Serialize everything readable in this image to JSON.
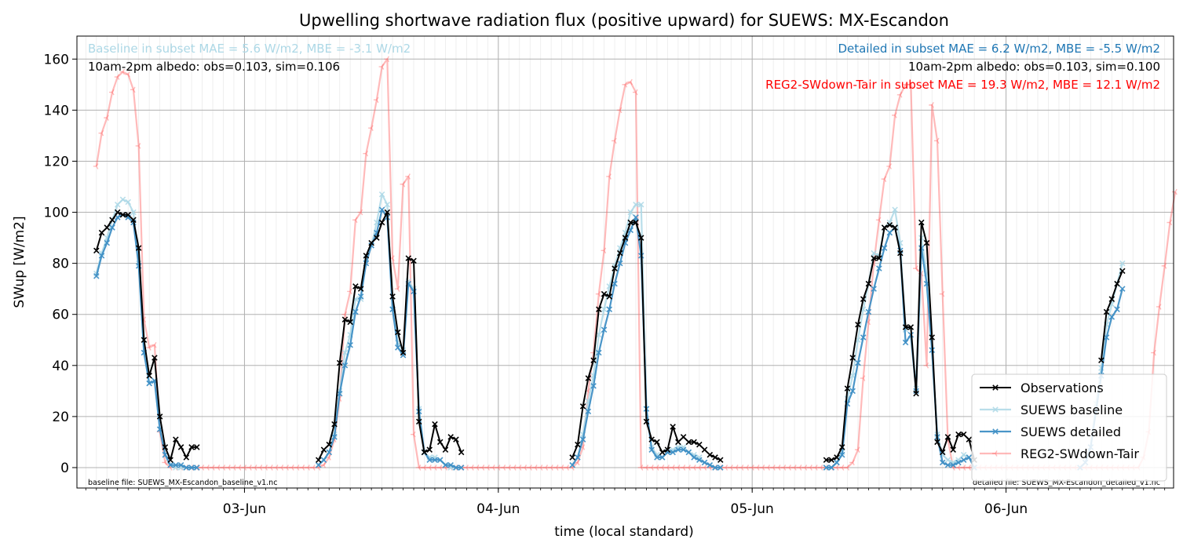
{
  "chart_data": {
    "type": "line",
    "title": "Upwelling shortwave radiation flux (positive upward) for SUEWS: MX-Escandon",
    "xlabel": "time (local standard)",
    "ylabel": "SWup [W/m2]",
    "x_ticks": [
      "03-Jun",
      "04-Jun",
      "05-Jun",
      "06-Jun"
    ],
    "y_ticks": [
      0,
      20,
      40,
      60,
      80,
      100,
      120,
      140,
      160
    ],
    "xlim_days": [
      2.34,
      6.66
    ],
    "ylim": [
      -8,
      169
    ],
    "grid": true,
    "legend_position": "lower right",
    "annotations": {
      "baseline_stats": "Baseline in subset MAE = 5.6 W/m2, MBE = -3.1 W/m2",
      "baseline_albedo": "10am-2pm albedo: obs=0.103, sim=0.106",
      "detailed_stats": "Detailed in subset MAE = 6.2 W/m2, MBE = -5.5 W/m2",
      "detailed_albedo": "10am-2pm albedo: obs=0.103, sim=0.100",
      "reg2_stats": "REG2-SWdown-Tair in subset MAE = 19.3 W/m2, MBE = 12.1 W/m2",
      "baseline_file": "baseline file: SUEWS_MX-Escandon_baseline_v1.nc",
      "detailed_file": "detailed file: SUEWS_MX-Escandon_detailed_v1.nc"
    },
    "series": [
      {
        "name": "Observations",
        "color": "#000000",
        "marker": "x",
        "segments": [
          {
            "start": "2-Jun 10:00",
            "step_hours": 0.5,
            "values": [
              85,
              92,
              94,
              97,
              100,
              99,
              99,
              97,
              86,
              50,
              36,
              43,
              20,
              8,
              3,
              11,
              8,
              4,
              8,
              8
            ]
          },
          {
            "start": "3-Jun 07:00",
            "step_hours": 0.5,
            "values": [
              3,
              7,
              9,
              17,
              41,
              58,
              57,
              71,
              70,
              83,
              88,
              90,
              96,
              100,
              67,
              53,
              45,
              82,
              81,
              18,
              6,
              7,
              17,
              10,
              7,
              12,
              11,
              6
            ]
          },
          {
            "start": "4-Jun 07:00",
            "step_hours": 0.5,
            "values": [
              4,
              9,
              24,
              35,
              42,
              62,
              68,
              67,
              78,
              84,
              90,
              96,
              96,
              90,
              18,
              11,
              10,
              6,
              7,
              16,
              10,
              12,
              10,
              10,
              9,
              7,
              5,
              4,
              3
            ]
          },
          {
            "start": "5-Jun 07:00",
            "step_hours": 0.5,
            "values": [
              3,
              3,
              4,
              8,
              31,
              43,
              56,
              66,
              72,
              82,
              82,
              94,
              95,
              94,
              84,
              55,
              55,
              29,
              96,
              88,
              51,
              10,
              6,
              12,
              7,
              13,
              13,
              11,
              3
            ]
          },
          {
            "start": "6-Jun 09:00",
            "step_hours": 0.5,
            "values": [
              42,
              61,
              66,
              72,
              77
            ]
          }
        ]
      },
      {
        "name": "SUEWS baseline",
        "color": "#add8e6",
        "marker": "x",
        "segments": [
          {
            "start": "2-Jun 10:00",
            "step_hours": 0.5,
            "values": [
              76,
              84,
              90,
              97,
              103,
              105,
              104,
              100,
              80,
              45,
              33,
              34,
              15,
              5,
              1,
              0,
              0,
              0,
              0,
              0
            ]
          },
          {
            "start": "3-Jun 07:00",
            "step_hours": 0.5,
            "values": [
              1,
              3,
              6,
              13,
              30,
              45,
              52,
              66,
              66,
              82,
              87,
              96,
              107,
              103,
              62,
              49,
              46,
              73,
              70,
              23,
              6,
              4,
              4,
              3,
              1,
              0,
              0,
              0
            ]
          },
          {
            "start": "4-Jun 07:00",
            "step_hours": 0.5,
            "values": [
              1,
              4,
              13,
              26,
              36,
              52,
              62,
              71,
              79,
              86,
              92,
              100,
              103,
              103,
              23,
              8,
              5,
              4,
              6,
              7,
              8,
              8,
              6,
              5,
              4,
              2,
              1,
              0,
              0
            ]
          },
          {
            "start": "5-Jun 07:00",
            "step_hours": 0.5,
            "values": [
              0,
              0,
              2,
              6,
              27,
              36,
              50,
              62,
              72,
              84,
              83,
              94,
              96,
              101,
              88,
              54,
              55,
              31,
              90,
              76,
              46,
              13,
              5,
              3,
              2,
              3,
              5,
              4,
              0
            ]
          },
          {
            "start": "6-Jun 07:00",
            "step_hours": 0.5,
            "values": [
              0,
              2,
              8,
              25,
              39,
              56,
              64,
              72,
              80
            ]
          }
        ]
      },
      {
        "name": "SUEWS detailed",
        "color": "#3f8fc5",
        "marker": "x",
        "segments": [
          {
            "start": "2-Jun 10:00",
            "step_hours": 0.5,
            "values": [
              75,
              83,
              88,
              94,
              98,
              99,
              98,
              96,
              79,
              45,
              33,
              34,
              15,
              5,
              1,
              1,
              1,
              0,
              0,
              0
            ]
          },
          {
            "start": "3-Jun 07:00",
            "step_hours": 0.5,
            "values": [
              1,
              3,
              6,
              12,
              29,
              40,
              48,
              61,
              67,
              80,
              87,
              92,
              101,
              98,
              62,
              47,
              44,
              72,
              69,
              22,
              6,
              3,
              3,
              3,
              1,
              1,
              0,
              0
            ]
          },
          {
            "start": "4-Jun 07:00",
            "step_hours": 0.5,
            "values": [
              1,
              4,
              11,
              22,
              32,
              45,
              54,
              62,
              72,
              80,
              88,
              93,
              98,
              83,
              23,
              7,
              4,
              4,
              6,
              6,
              7,
              7,
              6,
              4,
              3,
              2,
              1,
              0,
              0
            ]
          },
          {
            "start": "5-Jun 07:00",
            "step_hours": 0.5,
            "values": [
              0,
              0,
              2,
              5,
              25,
              30,
              41,
              51,
              61,
              70,
              78,
              86,
              92,
              94,
              85,
              49,
              52,
              30,
              86,
              72,
              46,
              12,
              2,
              1,
              1,
              2,
              3,
              4,
              0
            ]
          },
          {
            "start": "6-Jun 07:00",
            "step_hours": 0.5,
            "values": [
              0,
              2,
              8,
              22,
              36,
              51,
              59,
              62,
              70
            ]
          }
        ]
      },
      {
        "name": "REG2-SWdown-Tair",
        "color": "#ff6666",
        "marker": "tri_left",
        "segments": [
          {
            "start": "2-Jun 10:00",
            "step_hours": 0.5,
            "values": [
              118,
              131,
              137,
              147,
              153,
              155,
              154,
              148,
              126,
              58,
              47,
              48,
              14,
              2,
              0
            ]
          },
          {
            "start": "2-Jun 17:30",
            "step_hours": 0.5,
            "values": [
              0,
              0,
              0,
              0,
              0,
              0,
              0,
              0,
              0,
              0,
              0,
              0,
              0,
              0,
              0,
              0,
              0,
              0,
              0,
              0,
              0,
              0,
              0,
              0,
              0,
              0,
              0,
              0,
              1,
              4,
              11,
              27,
              60,
              69,
              97,
              100,
              123,
              133,
              144,
              157,
              160,
              82,
              70,
              111,
              114,
              13,
              0,
              0,
              0,
              0,
              0,
              0,
              0,
              0,
              0,
              0,
              0,
              0,
              0,
              0,
              0,
              0,
              0,
              0,
              0,
              0,
              0,
              0,
              0,
              0,
              0,
              0,
              0,
              0,
              0,
              0,
              2,
              8,
              30,
              45,
              68,
              85,
              114,
              128,
              140,
              150,
              151,
              147,
              0,
              0,
              0,
              0,
              0,
              0,
              0,
              0,
              0,
              0,
              0,
              0,
              0,
              0,
              0,
              0,
              0,
              0,
              0,
              0,
              0,
              0,
              0,
              0,
              0,
              0,
              0,
              0,
              0,
              0,
              0,
              0,
              0,
              0,
              0,
              0,
              0,
              0,
              0,
              0,
              2,
              7,
              35,
              57,
              80,
              97,
              113,
              118,
              138,
              146,
              150,
              150,
              78,
              76,
              40,
              142,
              128,
              68,
              11,
              0,
              0,
              0,
              0,
              0,
              0,
              0,
              0,
              0,
              0,
              0,
              0,
              0,
              0,
              0,
              0,
              0,
              0,
              0,
              0,
              0,
              0,
              0,
              0,
              0,
              0,
              0,
              0,
              0,
              0,
              0,
              0,
              0,
              0,
              0,
              0,
              4,
              14,
              45,
              63,
              79,
              96,
              108
            ]
          }
        ]
      }
    ]
  }
}
